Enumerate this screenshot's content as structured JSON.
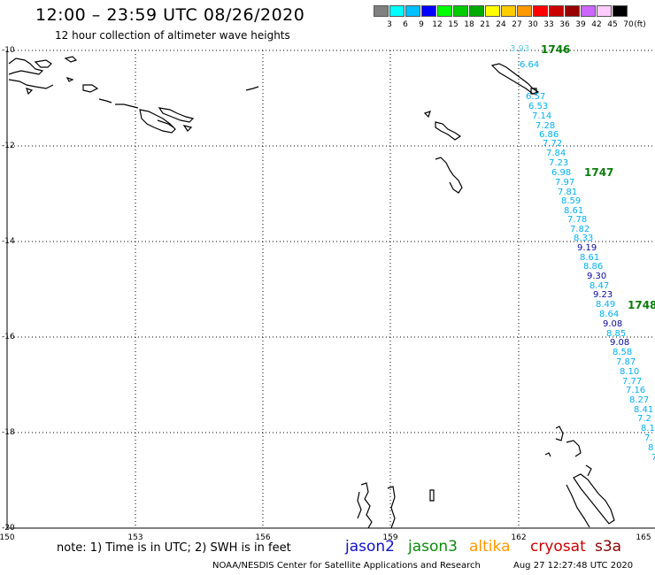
{
  "title": "12:00 – 23:59 UTC 08/26/2020",
  "subtitle": "12 hour collection of altimeter wave heights",
  "colorbar": {
    "colors": [
      "#808080",
      "#00ffff",
      "#00c0ff",
      "#0000ff",
      "#00ff00",
      "#00cc00",
      "#00aa00",
      "#ffff00",
      "#ffcc00",
      "#ff9900",
      "#ff0000",
      "#cc0000",
      "#990000",
      "#cc66ff",
      "#ffccff",
      "#000000"
    ],
    "labels": [
      "3",
      "6",
      "9",
      "12",
      "15",
      "18",
      "21",
      "24",
      "27",
      "30",
      "33",
      "36",
      "39",
      "42",
      "45",
      "70",
      "(ft)"
    ]
  },
  "lat_labels": [
    "-10",
    "-12",
    "-14",
    "-16",
    "-18",
    "-20"
  ],
  "lon_labels": [
    "150",
    "153",
    "156",
    "159",
    "162",
    "165"
  ],
  "cycles": [
    "1746",
    "1747",
    "1748"
  ],
  "track_values": [
    "3.93",
    "6.64",
    "6.57",
    "6.53",
    "7.14",
    "7.28",
    "6.86",
    "7.72",
    "7.84",
    "7.23",
    "6.98",
    "7.97",
    "7.81",
    "8.59",
    "8.61",
    "7.78",
    "7.82",
    "8.33",
    "9.19",
    "8.61",
    "8.86",
    "9.30",
    "8.47",
    "9.23",
    "8.49",
    "8.64",
    "9.08",
    "8.85",
    "9.08",
    "8.58",
    "7.87",
    "8.10",
    "7.77",
    "7.16",
    "8.27",
    "8.41",
    "7.2",
    "8.1",
    "7.",
    "8",
    "7"
  ],
  "note": "note: 1) Time is in UTC; 2) SWH is in feet",
  "satellites": [
    {
      "name": "jason2",
      "color": "#1010c8"
    },
    {
      "name": "jason3",
      "color": "#0a8a0a"
    },
    {
      "name": "altika",
      "color": "#ff9900"
    },
    {
      "name": "cryosat",
      "color": "#cc0000"
    },
    {
      "name": "s3a",
      "color": "#8b0000"
    }
  ],
  "credit": "NOAA/NESDIS Center for Satellite Applications and Research",
  "timestamp": "Aug 27 12:27:48 UTC 2020"
}
